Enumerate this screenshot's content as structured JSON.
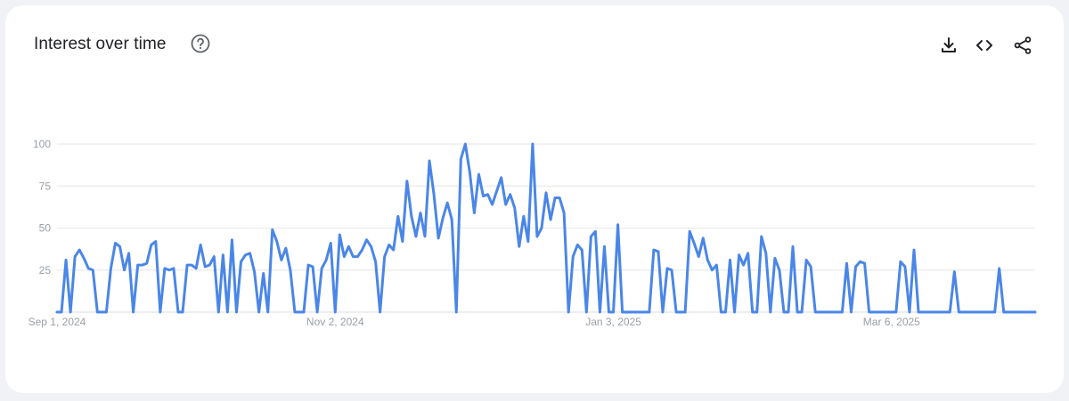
{
  "header": {
    "title": "Interest over time",
    "help_icon": "help-circle-icon",
    "actions": [
      {
        "icon": "download-icon"
      },
      {
        "icon": "embed-code-icon"
      },
      {
        "icon": "share-icon"
      }
    ]
  },
  "colors": {
    "line": "#4a86e8",
    "grid": "#e6e6e6",
    "axis_text": "#9aa0a6",
    "title": "#202124"
  },
  "chart_data": {
    "type": "line",
    "title": "Interest over time",
    "xlabel": "",
    "ylabel": "",
    "ylim": [
      0,
      100
    ],
    "yticks": [
      25,
      50,
      75,
      100
    ],
    "x_tick_labels": [
      "Sep 1, 2024",
      "Nov 2, 2024",
      "Jan 3, 2025",
      "Mar 6, 2025"
    ],
    "x_tick_indices": [
      0,
      62,
      124,
      186
    ],
    "grid": true,
    "legend": "none",
    "series": [
      {
        "values": [
          0,
          0,
          31,
          0,
          33,
          37,
          32,
          26,
          25,
          0,
          0,
          0,
          26,
          41,
          39,
          25,
          35,
          0,
          28,
          28,
          29,
          40,
          42,
          0,
          26,
          25,
          26,
          0,
          0,
          28,
          28,
          26,
          40,
          27,
          28,
          33,
          0,
          34,
          0,
          43,
          0,
          30,
          34,
          35,
          24,
          0,
          23,
          0,
          49,
          42,
          31,
          38,
          25,
          0,
          0,
          0,
          28,
          27,
          0,
          26,
          31,
          41,
          0,
          46,
          33,
          39,
          33,
          33,
          37,
          43,
          39,
          30,
          0,
          33,
          40,
          37,
          57,
          42,
          78,
          57,
          45,
          59,
          45,
          90,
          70,
          44,
          56,
          65,
          55,
          0,
          91,
          100,
          83,
          59,
          82,
          69,
          70,
          64,
          72,
          80,
          64,
          70,
          62,
          39,
          57,
          42,
          100,
          45,
          50,
          71,
          55,
          68,
          68,
          59,
          0,
          33,
          40,
          37,
          0,
          45,
          48,
          0,
          39,
          0,
          0,
          52,
          0,
          0,
          0,
          0,
          0,
          0,
          0,
          37,
          36,
          0,
          26,
          25,
          0,
          0,
          0,
          48,
          41,
          33,
          44,
          31,
          25,
          28,
          0,
          0,
          31,
          0,
          34,
          28,
          35,
          0,
          0,
          45,
          35,
          0,
          32,
          25,
          0,
          0,
          39,
          0,
          0,
          31,
          27,
          0,
          0,
          0,
          0,
          0,
          0,
          0,
          29,
          0,
          27,
          30,
          29,
          0,
          0,
          0,
          0,
          0,
          0,
          0,
          30,
          27,
          0,
          37,
          0,
          0,
          0,
          0,
          0,
          0,
          0,
          0,
          24,
          0,
          0,
          0,
          0,
          0,
          0,
          0,
          0,
          0,
          26,
          0,
          0,
          0,
          0,
          0,
          0,
          0,
          0
        ]
      }
    ]
  }
}
